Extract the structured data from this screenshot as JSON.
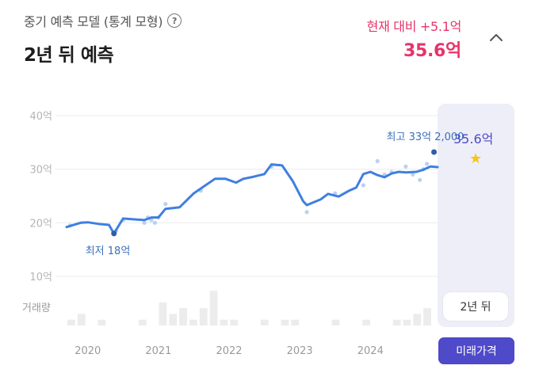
{
  "header": {
    "subtitle": "중기 예측 모델 (통계 모형)",
    "help_icon": "question-circle-icon",
    "title": "2년 뒤 예측",
    "delta_text": "현재 대비 +5.1억",
    "price_text": "35.6억",
    "collapse_icon": "chevron-up-icon"
  },
  "colors": {
    "accent_red": "#e8336a",
    "line_blue": "#3f7fe0",
    "purple": "#4e4ac9",
    "volume_bar": "#ececec"
  },
  "chart_data": {
    "type": "line",
    "y_ticks": [
      "40억",
      "30억",
      "20억",
      "10억"
    ],
    "y_tick_values": [
      40,
      30,
      20,
      10
    ],
    "ylim": [
      10,
      40
    ],
    "x_ticks": [
      "2020",
      "2021",
      "2022",
      "2023",
      "2024"
    ],
    "x_tick_values": [
      2020,
      2021,
      2022,
      2023,
      2024
    ],
    "xlim": [
      2019.7,
      2025.5
    ],
    "volume_label": "거래량",
    "series": [
      {
        "x": [
          2019.7,
          2019.9,
          2020.0,
          2020.15,
          2020.3,
          2020.37,
          2020.5,
          2020.6,
          2020.8,
          2020.9,
          2021.0,
          2021.1,
          2021.3,
          2021.5,
          2021.6,
          2021.8,
          2021.95,
          2022.1,
          2022.2,
          2022.35,
          2022.5,
          2022.6,
          2022.75,
          2022.9,
          2023.05,
          2023.1,
          2023.3,
          2023.4,
          2023.55,
          2023.7,
          2023.8,
          2023.9,
          2024.0,
          2024.1,
          2024.2,
          2024.3,
          2024.4,
          2024.5,
          2024.65,
          2024.75,
          2024.85,
          2024.95
        ],
        "y": [
          19.2,
          20.0,
          20.1,
          19.8,
          19.6,
          18.0,
          20.8,
          20.7,
          20.5,
          21.0,
          21.0,
          22.6,
          22.9,
          25.5,
          26.4,
          28.2,
          28.2,
          27.5,
          28.2,
          28.6,
          29.1,
          30.9,
          30.7,
          27.8,
          24.0,
          23.3,
          24.4,
          25.4,
          24.9,
          26.0,
          26.6,
          29.1,
          29.5,
          28.9,
          28.5,
          29.2,
          29.5,
          29.4,
          29.5,
          29.9,
          30.5,
          30.4
        ]
      }
    ],
    "transactions": [
      {
        "x": [
          2019.75,
          2020.4,
          2020.5,
          2020.8,
          2020.85,
          2020.9,
          2020.95,
          2021.0,
          2021.1,
          2021.6,
          2022.6,
          2023.1,
          2023.5,
          2023.9,
          2024.1,
          2024.2,
          2024.3,
          2024.5,
          2024.6,
          2024.7,
          2024.75,
          2024.8,
          2024.9
        ],
        "y": [
          19.5,
          18.5,
          20.5,
          20.0,
          21.0,
          20.5,
          20.0,
          21.0,
          23.5,
          26.0,
          30.5,
          22.0,
          25.5,
          27.0,
          31.5,
          29.0,
          29.5,
          30.5,
          29.0,
          28.0,
          30.0,
          31.0,
          33.2
        ]
      }
    ],
    "volume": [
      1,
      2,
      0,
      1,
      0,
      0,
      0,
      1,
      0,
      4,
      2,
      3,
      1,
      3,
      6,
      1,
      1,
      0,
      0,
      1,
      0,
      1,
      1,
      0,
      0,
      0,
      1,
      0,
      0,
      1,
      0,
      0,
      1,
      1,
      2,
      3
    ],
    "annotations": {
      "low": "최저 18억",
      "high": "최고 33억 2,000",
      "prediction": "35.6억",
      "prediction_value": 35.6,
      "prediction_icon": "star-icon"
    },
    "future_label": "2년 뒤",
    "grid": true
  },
  "buttons": {
    "future_price": "미래가격"
  }
}
